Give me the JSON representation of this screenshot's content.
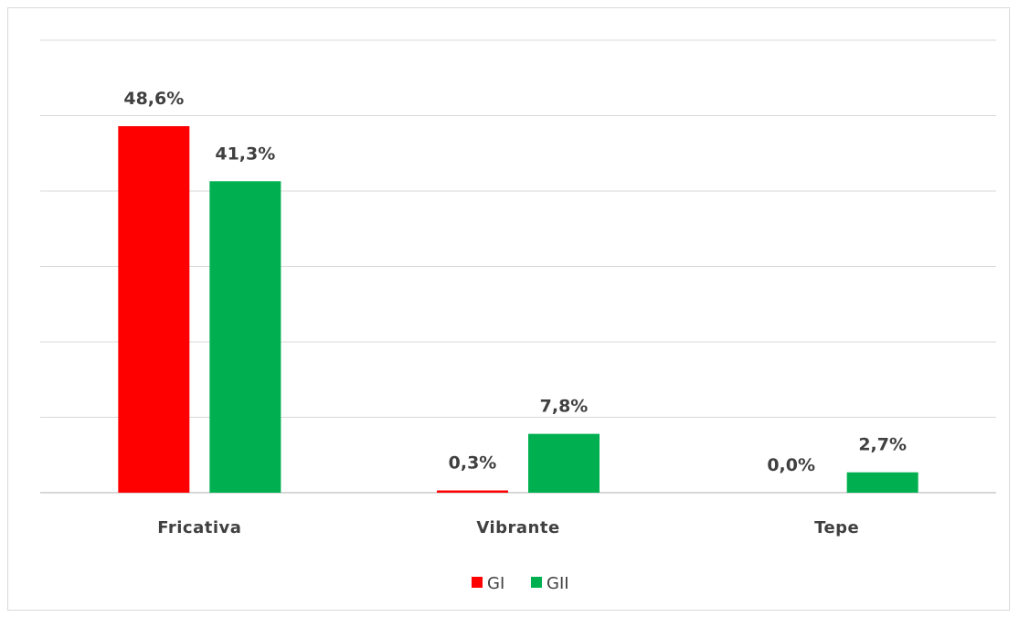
{
  "chart_data": {
    "type": "bar",
    "categories": [
      "Fricativa",
      "Vibrante",
      "Tepe"
    ],
    "series": [
      {
        "name": "GI",
        "color": "#ff0000",
        "values": [
          48.6,
          0.3,
          0.0
        ],
        "labels": [
          "48,6%",
          "0,3%",
          "0,0%"
        ]
      },
      {
        "name": "GII",
        "color": "#00b050",
        "values": [
          41.3,
          7.8,
          2.7
        ],
        "labels": [
          "41,3%",
          "7,8%",
          "2,7%"
        ]
      }
    ],
    "ylim": [
      0,
      60
    ],
    "gridlines": true,
    "legend": "bottom-center"
  }
}
